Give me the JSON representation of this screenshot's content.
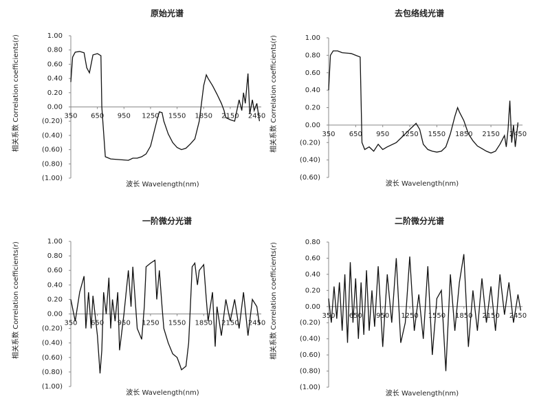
{
  "chart_data": [
    {
      "type": "line",
      "title": "原始光谱",
      "x_label": "波长 Wavelength(nm)",
      "y_label": "相关系数 Correlation coefficients(r)",
      "xlim": [
        350,
        2500
      ],
      "xticks": [
        350,
        650,
        950,
        1250,
        1550,
        1850,
        2150,
        2450
      ],
      "ylim": [
        -1,
        1
      ],
      "yticks": [
        {
          "value": 1,
          "label": "1.00"
        },
        {
          "value": 0.8,
          "label": "0.80"
        },
        {
          "value": 0.6,
          "label": "0.60"
        },
        {
          "value": 0.4,
          "label": "0.40"
        },
        {
          "value": 0.2,
          "label": "0.20"
        },
        {
          "value": 0,
          "label": "0.00"
        },
        {
          "value": -0.2,
          "label": "(0.20)"
        },
        {
          "value": -0.4,
          "label": "(0.40)"
        },
        {
          "value": -0.6,
          "label": "(0.60)"
        },
        {
          "value": -0.8,
          "label": "(0.80)"
        },
        {
          "value": -1,
          "label": "(1.00)"
        }
      ],
      "negative_label_color": "#c0392b",
      "series": [
        {
          "color": "#111111",
          "x": [
            350,
            370,
            400,
            450,
            500,
            530,
            560,
            600,
            650,
            690,
            700,
            740,
            800,
            900,
            1000,
            1050,
            1100,
            1150,
            1200,
            1250,
            1300,
            1330,
            1350,
            1380,
            1400,
            1450,
            1500,
            1550,
            1600,
            1650,
            1700,
            1750,
            1800,
            1850,
            1880,
            1900,
            1950,
            2000,
            2050,
            2080,
            2100,
            2150,
            2200,
            2250,
            2280,
            2300,
            2320,
            2350,
            2370,
            2400,
            2420,
            2450,
            2480
          ],
          "values": [
            0.35,
            0.7,
            0.77,
            0.78,
            0.76,
            0.55,
            0.48,
            0.73,
            0.75,
            0.72,
            0.0,
            -0.7,
            -0.73,
            -0.74,
            -0.75,
            -0.72,
            -0.72,
            -0.7,
            -0.66,
            -0.55,
            -0.3,
            -0.15,
            -0.07,
            -0.08,
            -0.2,
            -0.38,
            -0.5,
            -0.57,
            -0.6,
            -0.58,
            -0.52,
            -0.45,
            -0.2,
            0.3,
            0.45,
            0.4,
            0.3,
            0.18,
            0.05,
            -0.05,
            -0.15,
            -0.18,
            -0.2,
            0.1,
            -0.05,
            0.2,
            0.05,
            0.47,
            -0.1,
            0.1,
            -0.05,
            0.05,
            -0.2
          ]
        }
      ]
    },
    {
      "type": "line",
      "title": "去包络线光谱",
      "x_label": "波长 Wavelength(nm)",
      "y_label": "相关系数 Correlation coefficients(r)",
      "xlim": [
        350,
        2500
      ],
      "xticks": [
        350,
        650,
        950,
        1250,
        1550,
        1850,
        2150,
        2450
      ],
      "ylim": [
        -0.6,
        1
      ],
      "yticks": [
        {
          "value": 1,
          "label": "1.00"
        },
        {
          "value": 0.8,
          "label": "0.80"
        },
        {
          "value": 0.6,
          "label": "0.60"
        },
        {
          "value": 0.4,
          "label": "0.40"
        },
        {
          "value": 0.2,
          "label": "0.20"
        },
        {
          "value": 0,
          "label": "0.00"
        },
        {
          "value": -0.2,
          "label": "(0.20)"
        },
        {
          "value": -0.4,
          "label": "(0.40)"
        },
        {
          "value": -0.6,
          "label": "(0.60)"
        }
      ],
      "negative_label_color": "#c0392b",
      "series": [
        {
          "color": "#111111",
          "x": [
            350,
            370,
            400,
            450,
            500,
            600,
            650,
            700,
            720,
            750,
            800,
            850,
            900,
            950,
            1000,
            1100,
            1200,
            1250,
            1300,
            1320,
            1360,
            1400,
            1450,
            1500,
            1550,
            1600,
            1650,
            1700,
            1750,
            1780,
            1800,
            1850,
            1900,
            1950,
            2000,
            2050,
            2100,
            2150,
            2200,
            2250,
            2300,
            2320,
            2340,
            2360,
            2380,
            2400,
            2420,
            2450
          ],
          "values": [
            0.4,
            0.8,
            0.85,
            0.85,
            0.83,
            0.82,
            0.8,
            0.78,
            -0.2,
            -0.28,
            -0.25,
            -0.3,
            -0.22,
            -0.28,
            -0.25,
            -0.2,
            -0.1,
            -0.05,
            0.0,
            0.02,
            -0.05,
            -0.22,
            -0.28,
            -0.3,
            -0.31,
            -0.3,
            -0.25,
            -0.1,
            0.1,
            0.2,
            0.15,
            0.05,
            -0.1,
            -0.18,
            -0.24,
            -0.27,
            -0.3,
            -0.32,
            -0.3,
            -0.22,
            -0.12,
            -0.25,
            -0.05,
            0.28,
            -0.2,
            0.0,
            -0.25,
            0.03
          ]
        }
      ]
    },
    {
      "type": "line",
      "title": "一阶微分光谱",
      "x_label": "波长 Wavelength(nm)",
      "y_label": "相关系数 Correlation coefficients(r)",
      "xlim": [
        350,
        2500
      ],
      "xticks": [
        350,
        650,
        950,
        1250,
        1550,
        1850,
        2150,
        2450
      ],
      "ylim": [
        -1,
        1
      ],
      "yticks": [
        {
          "value": 1,
          "label": "1.00"
        },
        {
          "value": 0.8,
          "label": "0.80"
        },
        {
          "value": 0.6,
          "label": "0.60"
        },
        {
          "value": 0.4,
          "label": "0.40"
        },
        {
          "value": 0.2,
          "label": "0.20"
        },
        {
          "value": 0,
          "label": "0.00"
        },
        {
          "value": -0.2,
          "label": "(0.20)"
        },
        {
          "value": -0.4,
          "label": "(0.40)"
        },
        {
          "value": -0.6,
          "label": "(0.60)"
        },
        {
          "value": -0.8,
          "label": "(0.80)"
        },
        {
          "value": -1,
          "label": "(1.00)"
        }
      ],
      "negative_label_color": "#c0392b",
      "series": [
        {
          "color": "#111111",
          "x": [
            350,
            400,
            450,
            500,
            520,
            550,
            580,
            600,
            650,
            680,
            700,
            720,
            750,
            780,
            800,
            820,
            850,
            880,
            900,
            950,
            1000,
            1030,
            1050,
            1100,
            1150,
            1180,
            1200,
            1250,
            1300,
            1320,
            1350,
            1380,
            1400,
            1450,
            1500,
            1550,
            1580,
            1600,
            1650,
            1680,
            1700,
            1720,
            1750,
            1780,
            1800,
            1850,
            1880,
            1900,
            1950,
            1980,
            2000,
            2050,
            2100,
            2150,
            2200,
            2250,
            2300,
            2350,
            2400,
            2450,
            2480
          ],
          "values": [
            0.2,
            -0.1,
            0.3,
            0.52,
            -0.2,
            0.3,
            -0.2,
            0.25,
            -0.3,
            -0.82,
            -0.5,
            0.3,
            0.0,
            0.5,
            -0.2,
            0.2,
            -0.1,
            0.3,
            -0.5,
            0.0,
            0.6,
            0.1,
            0.65,
            -0.2,
            -0.35,
            0.1,
            0.65,
            0.7,
            0.74,
            0.2,
            0.6,
            0.1,
            -0.2,
            -0.4,
            -0.55,
            -0.6,
            -0.7,
            -0.77,
            -0.72,
            -0.4,
            0.1,
            0.65,
            0.7,
            0.4,
            0.6,
            0.68,
            0.2,
            -0.1,
            0.3,
            -0.45,
            0.1,
            -0.3,
            0.2,
            -0.1,
            0.2,
            -0.2,
            0.3,
            -0.3,
            0.2,
            0.1,
            -0.15
          ]
        }
      ]
    },
    {
      "type": "line",
      "title": "二阶微分光谱",
      "x_label": "波长 Wavelength(nm)",
      "y_label": "相关系数 Correlation coefficients(r)",
      "xlim": [
        350,
        2500
      ],
      "xticks": [
        350,
        650,
        950,
        1250,
        1550,
        1850,
        2150,
        2450
      ],
      "ylim": [
        -1,
        0.8
      ],
      "yticks": [
        {
          "value": 0.8,
          "label": "0.80"
        },
        {
          "value": 0.6,
          "label": "0.60"
        },
        {
          "value": 0.4,
          "label": "0.40"
        },
        {
          "value": 0.2,
          "label": "0.20"
        },
        {
          "value": 0,
          "label": "0.00"
        },
        {
          "value": -0.2,
          "label": "(0.20)"
        },
        {
          "value": -0.4,
          "label": "(0.40)"
        },
        {
          "value": -0.6,
          "label": "(0.60)"
        },
        {
          "value": -0.8,
          "label": "(0.80)"
        },
        {
          "value": -1,
          "label": "(1.00)"
        }
      ],
      "negative_label_color": "#c0392b",
      "series": [
        {
          "color": "#111111",
          "x": [
            350,
            380,
            410,
            440,
            470,
            500,
            530,
            560,
            590,
            620,
            650,
            680,
            710,
            740,
            770,
            800,
            830,
            860,
            900,
            950,
            1000,
            1050,
            1100,
            1150,
            1200,
            1250,
            1300,
            1350,
            1400,
            1450,
            1500,
            1550,
            1600,
            1650,
            1700,
            1750,
            1800,
            1850,
            1900,
            1950,
            2000,
            2050,
            2100,
            2150,
            2200,
            2250,
            2300,
            2350,
            2400,
            2450,
            2480
          ],
          "values": [
            0.1,
            -0.2,
            0.25,
            -0.15,
            0.3,
            -0.3,
            0.4,
            -0.45,
            0.55,
            -0.2,
            0.35,
            -0.4,
            0.3,
            -0.35,
            0.45,
            -0.3,
            0.2,
            -0.25,
            0.5,
            -0.5,
            0.4,
            -0.2,
            0.6,
            -0.45,
            -0.2,
            0.62,
            -0.3,
            0.15,
            -0.4,
            0.5,
            -0.6,
            0.1,
            0.2,
            -0.8,
            0.4,
            -0.3,
            0.3,
            0.65,
            -0.5,
            0.2,
            -0.3,
            0.35,
            -0.2,
            0.25,
            -0.3,
            0.4,
            -0.1,
            0.3,
            -0.2,
            0.15,
            -0.05
          ]
        }
      ]
    }
  ]
}
